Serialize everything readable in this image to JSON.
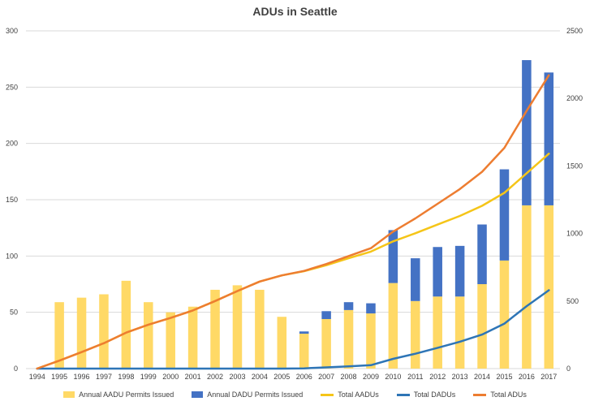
{
  "chart_data": {
    "type": "bar",
    "title": "ADUs in Seattle",
    "categories": [
      "1994",
      "1995",
      "1996",
      "1997",
      "1998",
      "1999",
      "2000",
      "2001",
      "2002",
      "2003",
      "2004",
      "2005",
      "2006",
      "2007",
      "2008",
      "2009",
      "2010",
      "2011",
      "2012",
      "2013",
      "2014",
      "2015",
      "2016",
      "2017"
    ],
    "ylim": [
      0,
      300
    ],
    "yticks": [
      0,
      50,
      100,
      150,
      200,
      250,
      300
    ],
    "ylim_secondary": [
      0,
      2500
    ],
    "yticks_secondary": [
      0,
      500,
      1000,
      1500,
      2000,
      2500
    ],
    "grid": true,
    "legend_position": "bottom",
    "bar_series": [
      {
        "name": "Annual AADU Permits Issued",
        "color": "#FFD966",
        "values": [
          0,
          59,
          63,
          66,
          78,
          59,
          50,
          55,
          70,
          74,
          70,
          46,
          31,
          44,
          52,
          49,
          76,
          60,
          64,
          64,
          75,
          96,
          145,
          145
        ]
      },
      {
        "name": "Annual DADU Permits Issued",
        "color": "#4472C4",
        "values": [
          0,
          0,
          0,
          0,
          0,
          0,
          0,
          0,
          0,
          0,
          0,
          0,
          2,
          7,
          7,
          9,
          47,
          38,
          44,
          45,
          53,
          81,
          129,
          118
        ]
      }
    ],
    "line_series": [
      {
        "name": "Total AADUs",
        "color": "#F5C518",
        "axis": "secondary",
        "values": [
          0,
          59,
          122,
          188,
          266,
          325,
          375,
          430,
          500,
          574,
          644,
          690,
          721,
          765,
          817,
          866,
          942,
          1002,
          1066,
          1130,
          1205,
          1301,
          1446,
          1591
        ]
      },
      {
        "name": "Total DADUs",
        "color": "#2E75B6",
        "axis": "secondary",
        "values": [
          0,
          0,
          0,
          0,
          0,
          0,
          0,
          0,
          0,
          0,
          0,
          0,
          2,
          9,
          16,
          25,
          72,
          110,
          154,
          199,
          252,
          333,
          462,
          580
        ]
      },
      {
        "name": "Total ADUs",
        "color": "#ED7D31",
        "axis": "secondary",
        "values": [
          0,
          59,
          122,
          188,
          266,
          325,
          375,
          430,
          500,
          574,
          644,
          690,
          723,
          774,
          833,
          891,
          1014,
          1112,
          1220,
          1329,
          1457,
          1634,
          1908,
          2171
        ]
      }
    ]
  }
}
